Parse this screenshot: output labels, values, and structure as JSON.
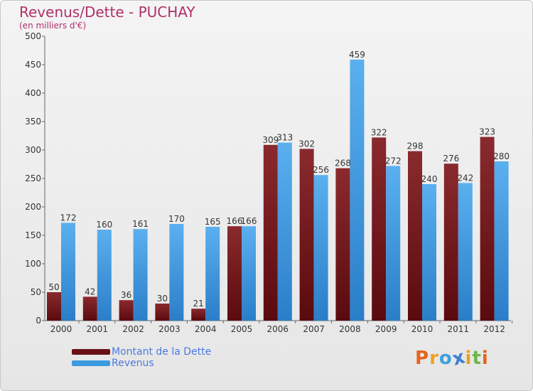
{
  "chart_data": {
    "type": "bar",
    "title": "Revenus/Dette - PUCHAY",
    "subtitle": "(en milliers d'€)",
    "categories": [
      "2000",
      "2001",
      "2002",
      "2003",
      "2004",
      "2005",
      "2006",
      "2007",
      "2008",
      "2009",
      "2010",
      "2011",
      "2012"
    ],
    "series": [
      {
        "name": "Montant de la Dette",
        "color": "#7a1a1f",
        "values": [
          50,
          42,
          36,
          30,
          21,
          166,
          309,
          302,
          268,
          322,
          298,
          276,
          323
        ]
      },
      {
        "name": "Revenus",
        "color": "#4aa3e6",
        "values": [
          172,
          160,
          161,
          170,
          165,
          166,
          313,
          256,
          459,
          272,
          240,
          242,
          280
        ]
      }
    ],
    "ylim": [
      0,
      500
    ],
    "yticks": [
      0,
      50,
      100,
      150,
      200,
      250,
      300,
      350,
      400,
      450,
      500
    ],
    "grid": false,
    "legend": "bottom-left"
  },
  "logo": {
    "letters": [
      "P",
      "r",
      "o",
      "x",
      "i",
      "t",
      "i"
    ],
    "colors": [
      "#e8631c",
      "#f0a020",
      "#3ba0e0",
      "#3c7fd0",
      "#e8a020",
      "#6ab84a",
      "#e8631c"
    ]
  }
}
